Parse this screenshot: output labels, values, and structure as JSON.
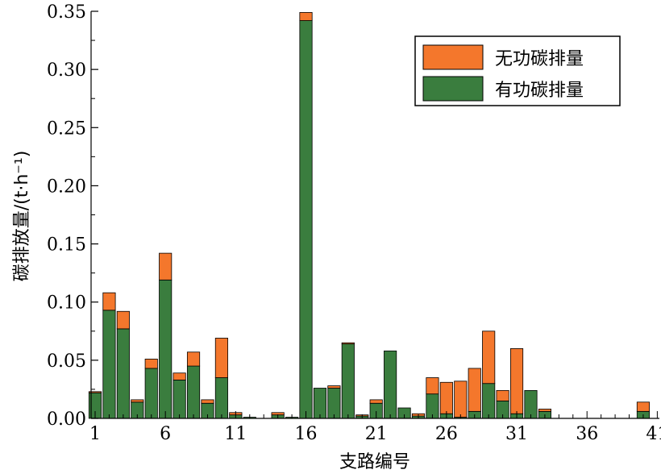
{
  "chart_data": {
    "type": "bar",
    "stacked": true,
    "xlabel": "支路编号",
    "ylabel": "碳排放量/(t·h⁻¹)",
    "ylim": [
      0,
      0.35
    ],
    "yticks": [
      "0.00",
      "0.05",
      "0.10",
      "0.15",
      "0.20",
      "0.25",
      "0.30",
      "0.35"
    ],
    "xticks": [
      "1",
      "6",
      "11",
      "16",
      "21",
      "26",
      "31",
      "36",
      "41"
    ],
    "xrange": [
      1,
      41
    ],
    "grid": false,
    "legend_position": "top-right",
    "categories": [
      1,
      2,
      3,
      4,
      5,
      6,
      7,
      8,
      9,
      10,
      11,
      12,
      13,
      14,
      15,
      16,
      17,
      18,
      19,
      20,
      21,
      22,
      23,
      24,
      25,
      26,
      27,
      28,
      29,
      30,
      31,
      32,
      33,
      34,
      35,
      36,
      37,
      38,
      39,
      40
    ],
    "series": [
      {
        "name": "有功碳排量",
        "color": "#3a7d3e",
        "values": [
          0.022,
          0.093,
          0.077,
          0.014,
          0.043,
          0.119,
          0.033,
          0.045,
          0.013,
          0.035,
          0.003,
          0.001,
          0,
          0.003,
          0.001,
          0.342,
          0.026,
          0.026,
          0.064,
          0.002,
          0.013,
          0.058,
          0.009,
          0.002,
          0.021,
          0.004,
          0.001,
          0.006,
          0.03,
          0.015,
          0.004,
          0.024,
          0.006,
          0,
          0,
          0,
          0,
          0,
          0,
          0.006
        ]
      },
      {
        "name": "无功碳排量",
        "color": "#f4772c",
        "values": [
          0.001,
          0.015,
          0.015,
          0.002,
          0.008,
          0.023,
          0.006,
          0.012,
          0.003,
          0.034,
          0.002,
          0,
          0,
          0.002,
          0,
          0.007,
          0,
          0.002,
          0.001,
          0.001,
          0.003,
          0,
          0,
          0.002,
          0.014,
          0.027,
          0.031,
          0.037,
          0.045,
          0.009,
          0.056,
          0,
          0.002,
          0,
          0,
          0,
          0,
          0,
          0,
          0.008
        ]
      }
    ]
  }
}
